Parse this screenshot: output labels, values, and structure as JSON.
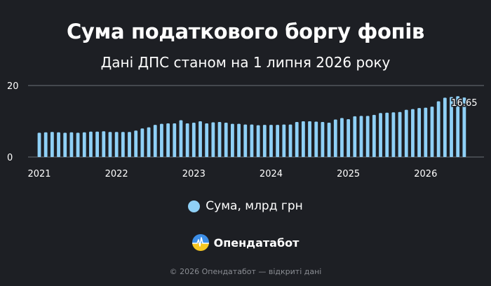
{
  "brand": {
    "name": "Опендатабот",
    "logo_icon": "opendatabot-logo-icon"
  },
  "footer": {
    "text": "© 2026 Опендатабот — відкриті дані"
  },
  "colors": {
    "background": "#1d1f24",
    "bar": "#8fd0f6",
    "gridline": "#6c7078",
    "text": "#ffffff"
  },
  "chart_data": {
    "type": "bar",
    "title": "Сума податкового боргу фопів",
    "subtitle": "Дані ДПС станом на 1 липня 2026 року",
    "xlabel": "",
    "ylabel": "",
    "x_tick_labels": [
      "2021",
      "2022",
      "2023",
      "2024",
      "2025",
      "2026"
    ],
    "y_tick_labels": [
      "0",
      "20"
    ],
    "ylim": [
      0,
      20
    ],
    "grid": true,
    "legend_position": "bottom",
    "data_label": "16.65",
    "series": [
      {
        "name": "Сума, млрд грн",
        "x": [
          "2021-01",
          "2021-02",
          "2021-03",
          "2021-04",
          "2021-05",
          "2021-06",
          "2021-07",
          "2021-08",
          "2021-09",
          "2021-10",
          "2021-11",
          "2021-12",
          "2022-01",
          "2022-02",
          "2022-03",
          "2022-04",
          "2022-05",
          "2022-06",
          "2022-07",
          "2022-08",
          "2022-09",
          "2022-10",
          "2022-11",
          "2022-12",
          "2023-01",
          "2023-02",
          "2023-03",
          "2023-04",
          "2023-05",
          "2023-06",
          "2023-07",
          "2023-08",
          "2023-09",
          "2023-10",
          "2023-11",
          "2023-12",
          "2024-01",
          "2024-02",
          "2024-03",
          "2024-04",
          "2024-05",
          "2024-06",
          "2024-07",
          "2024-08",
          "2024-09",
          "2024-10",
          "2024-11",
          "2024-12",
          "2025-01",
          "2025-02",
          "2025-03",
          "2025-04",
          "2025-05",
          "2025-06",
          "2025-07",
          "2025-08",
          "2025-09",
          "2025-10",
          "2025-11",
          "2025-12",
          "2026-01",
          "2026-02",
          "2026-03",
          "2026-04",
          "2026-05",
          "2026-06",
          "2026-07"
        ],
        "values": [
          6.8,
          6.9,
          7.0,
          6.9,
          6.8,
          6.9,
          6.8,
          6.9,
          7.1,
          7.1,
          7.2,
          7.0,
          7.0,
          7.0,
          7.0,
          7.4,
          8.0,
          8.3,
          9.0,
          9.3,
          9.4,
          9.4,
          10.3,
          9.4,
          9.6,
          10.0,
          9.4,
          9.7,
          9.8,
          9.6,
          9.3,
          9.3,
          9.1,
          9.1,
          8.9,
          9.0,
          9.0,
          9.0,
          9.1,
          9.1,
          9.8,
          10.0,
          10.0,
          9.9,
          9.8,
          9.6,
          10.5,
          10.9,
          10.6,
          11.4,
          11.5,
          11.5,
          11.8,
          12.3,
          12.4,
          12.5,
          12.6,
          13.2,
          13.4,
          13.7,
          13.8,
          14.1,
          15.6,
          16.6,
          16.8,
          17.0,
          16.65
        ]
      }
    ]
  }
}
